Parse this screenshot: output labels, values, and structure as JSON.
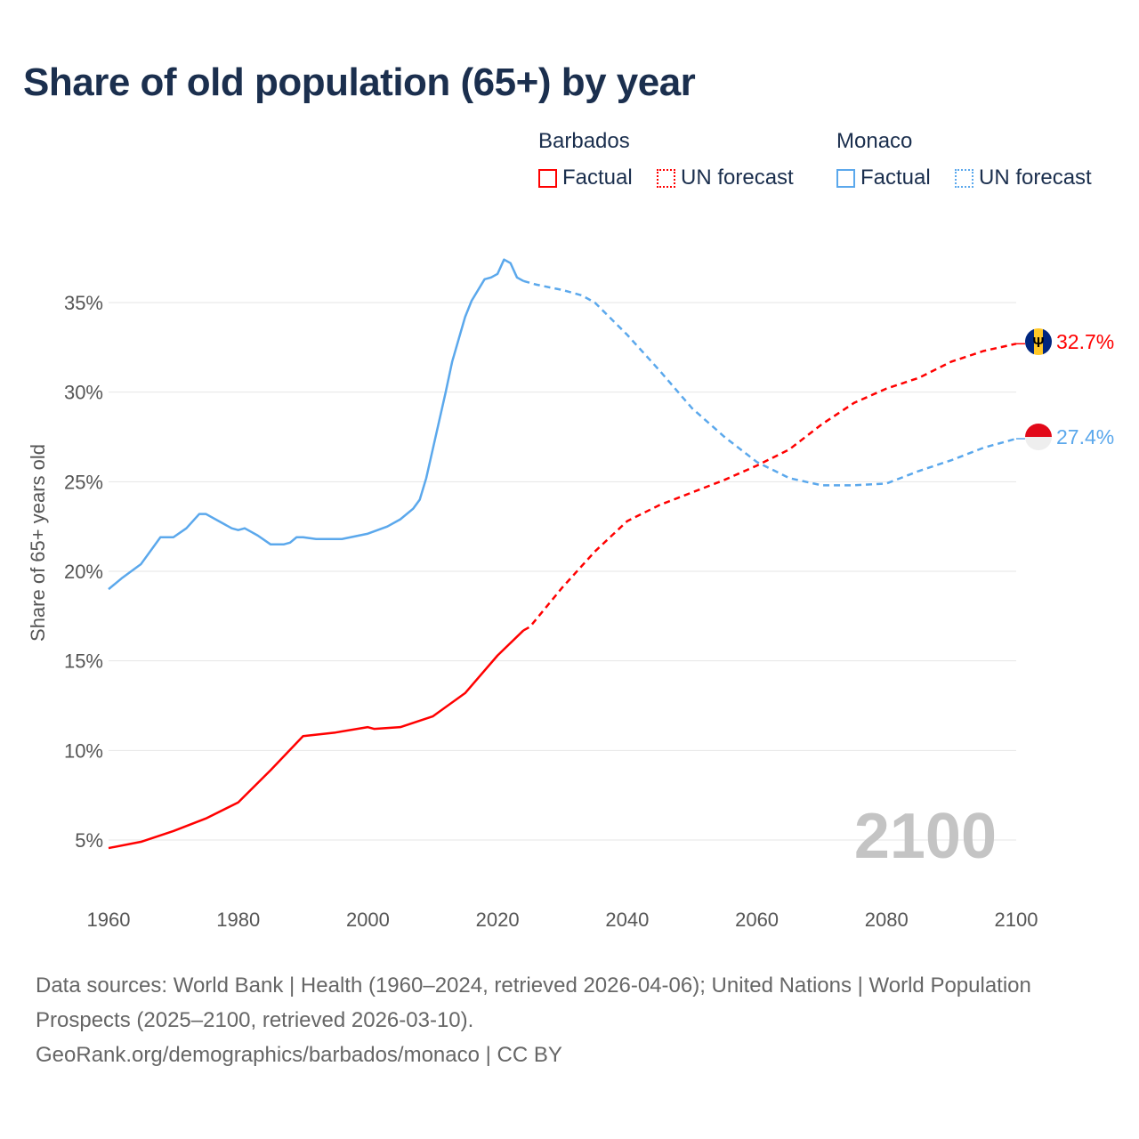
{
  "title": "Share of old population (65+) by year",
  "legend": {
    "groups": [
      {
        "name": "Barbados",
        "factual": "Factual",
        "forecast": "UN forecast",
        "color": "#ff0000"
      },
      {
        "name": "Monaco",
        "factual": "Factual",
        "forecast": "UN forecast",
        "color": "#5ba8ec"
      }
    ]
  },
  "year_watermark": "2100",
  "end_labels": {
    "barbados": "32.7%",
    "monaco": "27.4%"
  },
  "flags": {
    "barbados": "barbados-flag-icon",
    "monaco": "monaco-flag-icon"
  },
  "source": {
    "line1": "Data sources: World Bank | Health (1960–2024, retrieved 2026-04-06); United Nations | World Population Prospects (2025–2100, retrieved 2026-03-10).",
    "line2": "GeoRank.org/demographics/barbados/monaco | CC BY"
  },
  "chart_data": {
    "type": "line",
    "title": "Share of old population (65+) by year",
    "xlabel": "",
    "ylabel": "Share of 65+ years old",
    "xlim": [
      1960,
      2100
    ],
    "ylim": [
      3,
      38
    ],
    "x_ticks": [
      1960,
      1980,
      2000,
      2020,
      2040,
      2060,
      2080,
      2100
    ],
    "x_tick_labels": [
      "1960",
      "1980",
      "2000",
      "2020",
      "2040",
      "2060",
      "2080",
      "2100"
    ],
    "y_ticks": [
      5,
      10,
      15,
      20,
      25,
      30,
      35
    ],
    "y_tick_labels": [
      "5%",
      "10%",
      "15%",
      "20%",
      "25%",
      "30%",
      "35%"
    ],
    "grid": true,
    "legend_position": "top-right",
    "factual_end_year": 2024,
    "series": [
      {
        "name": "Barbados",
        "color": "#ff0000",
        "x": [
          1960,
          1965,
          1970,
          1975,
          1980,
          1985,
          1990,
          1995,
          2000,
          2001,
          2005,
          2010,
          2015,
          2020,
          2024,
          2025,
          2030,
          2035,
          2040,
          2045,
          2050,
          2055,
          2060,
          2065,
          2070,
          2075,
          2080,
          2085,
          2090,
          2095,
          2100
        ],
        "y": [
          4.55,
          4.9,
          5.5,
          6.2,
          7.1,
          8.9,
          10.8,
          11.0,
          11.3,
          11.2,
          11.3,
          11.9,
          13.2,
          15.3,
          16.7,
          16.9,
          19.1,
          21.1,
          22.8,
          23.7,
          24.4,
          25.1,
          25.9,
          26.8,
          28.2,
          29.4,
          30.2,
          30.8,
          31.7,
          32.3,
          32.7
        ]
      },
      {
        "name": "Monaco",
        "color": "#5ba8ec",
        "x": [
          1960,
          1962,
          1965,
          1968,
          1970,
          1972,
          1974,
          1975,
          1977,
          1979,
          1980,
          1981,
          1982,
          1983,
          1985,
          1987,
          1988,
          1989,
          1990,
          1992,
          1996,
          2000,
          2003,
          2005,
          2007,
          2008,
          2009,
          2010,
          2012,
          2013,
          2015,
          2016,
          2018,
          2019,
          2020,
          2021,
          2022,
          2023,
          2024,
          2026,
          2030,
          2033,
          2035,
          2040,
          2045,
          2050,
          2055,
          2060,
          2065,
          2070,
          2075,
          2080,
          2085,
          2090,
          2095,
          2100
        ],
        "y": [
          19.0,
          19.6,
          20.4,
          21.9,
          21.9,
          22.4,
          23.2,
          23.2,
          22.8,
          22.4,
          22.3,
          22.4,
          22.2,
          22.0,
          21.5,
          21.5,
          21.6,
          21.9,
          21.9,
          21.8,
          21.8,
          22.1,
          22.5,
          22.9,
          23.5,
          24.0,
          25.2,
          26.8,
          30.0,
          31.7,
          34.2,
          35.1,
          36.3,
          36.4,
          36.6,
          37.4,
          37.2,
          36.4,
          36.2,
          36.0,
          35.7,
          35.4,
          35.0,
          33.2,
          31.2,
          29.1,
          27.5,
          26.1,
          25.2,
          24.8,
          24.8,
          24.9,
          25.6,
          26.2,
          26.9,
          27.4
        ]
      }
    ]
  }
}
